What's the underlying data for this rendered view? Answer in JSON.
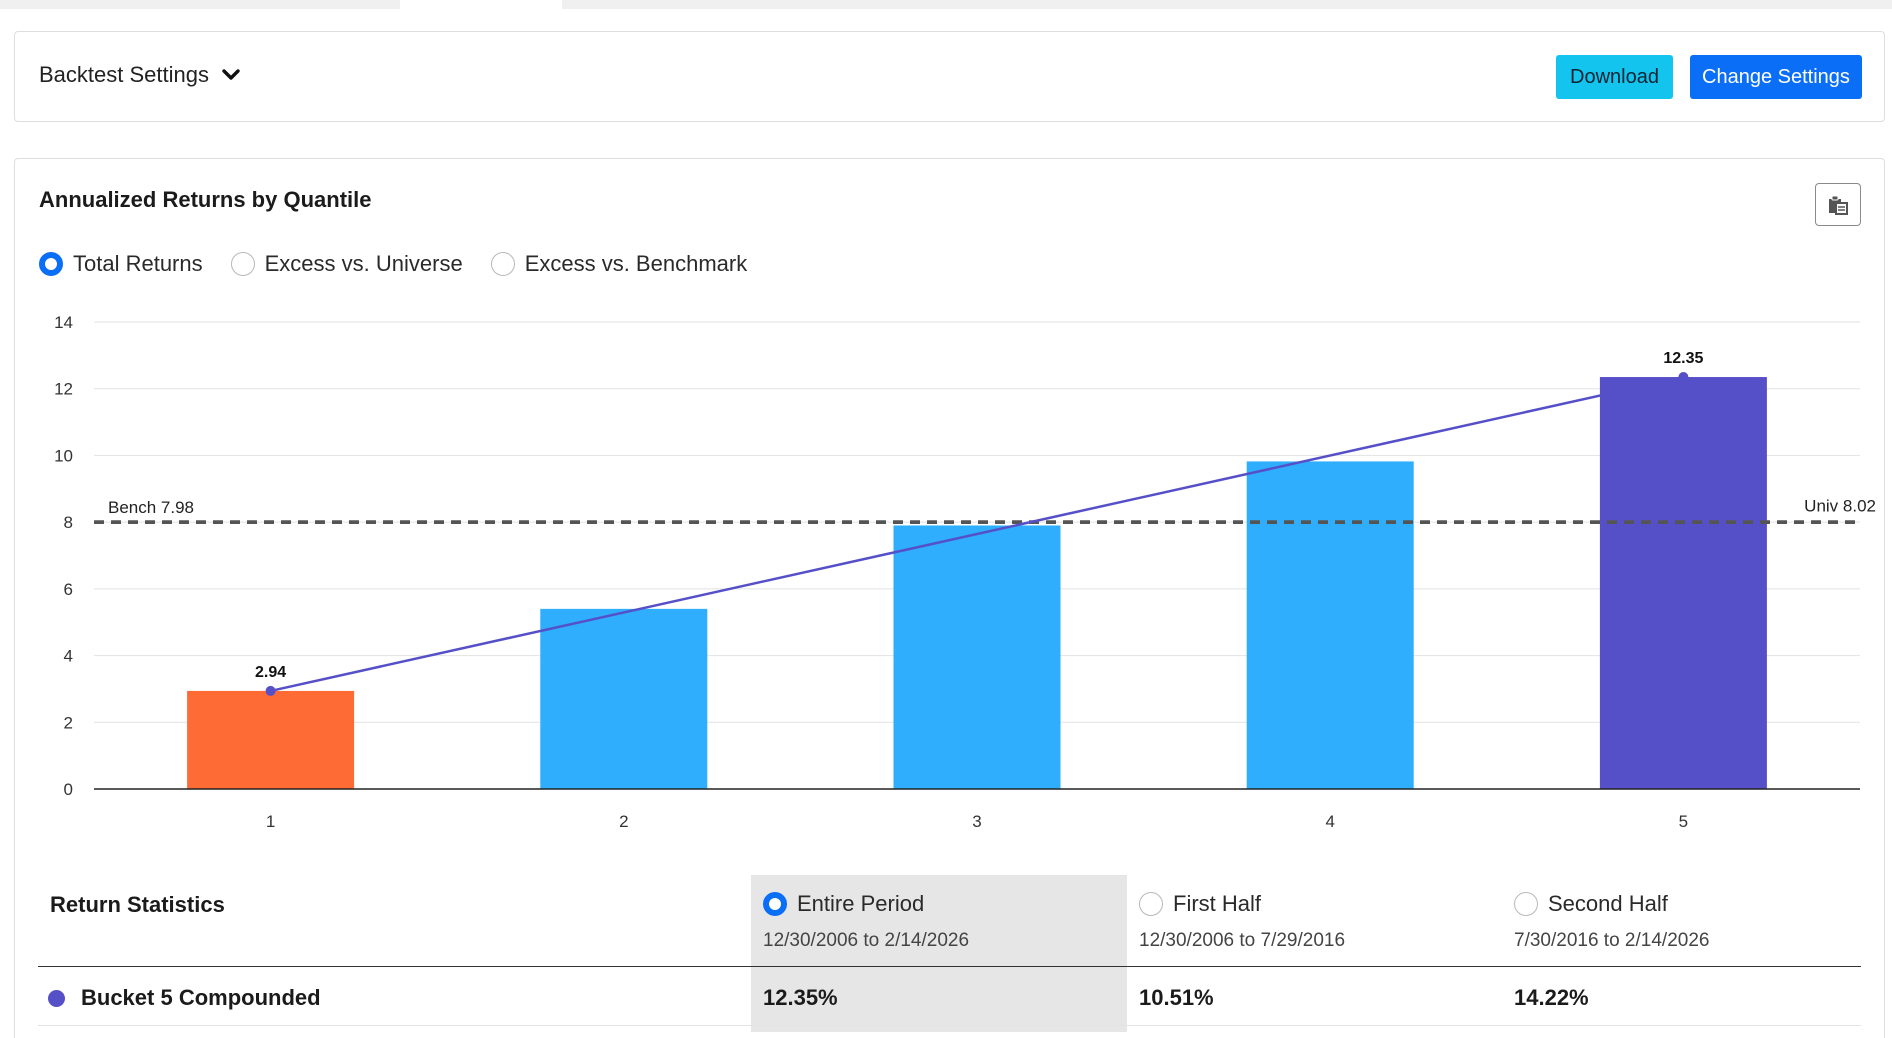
{
  "settings": {
    "title": "Backtest Settings",
    "download_label": "Download",
    "change_label": "Change Settings"
  },
  "chart_card": {
    "title": "Annualized Returns by Quantile",
    "modes": [
      {
        "label": "Total Returns",
        "selected": true
      },
      {
        "label": "Excess vs. Universe",
        "selected": false
      },
      {
        "label": "Excess vs. Benchmark",
        "selected": false
      }
    ],
    "copy_icon": "clipboard-icon"
  },
  "chart_data": {
    "type": "bar",
    "title": "",
    "xlabel": "",
    "ylabel": "",
    "categories": [
      "1",
      "2",
      "3",
      "4",
      "5"
    ],
    "values": [
      2.94,
      5.4,
      7.9,
      9.82,
      12.35
    ],
    "bar_colors": [
      "#ff6b35",
      "#2eaefc",
      "#2eaefc",
      "#2eaefc",
      "#5650c8"
    ],
    "data_labels": [
      {
        "category": "1",
        "text": "2.94"
      },
      {
        "category": "5",
        "text": "12.35"
      }
    ],
    "trend_line": {
      "from_category": "1",
      "from_value": 2.94,
      "to_category": "5",
      "to_value": 12.35,
      "color": "#5650c8"
    },
    "reference_lines": [
      {
        "label": "Bench 7.98",
        "value": 7.98,
        "side": "left"
      },
      {
        "label": "Univ 8.02",
        "value": 8.02,
        "side": "right"
      }
    ],
    "yticks": [
      0,
      2,
      4,
      6,
      8,
      10,
      12,
      14
    ],
    "ylim": [
      0,
      14
    ],
    "grid": true
  },
  "stats": {
    "heading": "Return Statistics",
    "periods": [
      {
        "label": "Entire Period",
        "range": "12/30/2006 to 2/14/2026",
        "selected": true
      },
      {
        "label": "First Half",
        "range": "12/30/2006 to 7/29/2016",
        "selected": false
      },
      {
        "label": "Second Half",
        "range": "7/30/2016 to 2/14/2026",
        "selected": false
      }
    ],
    "row": {
      "label": "Bucket 5 Compounded",
      "dot_color": "#5650c8",
      "values": [
        "12.35%",
        "10.51%",
        "14.22%"
      ]
    }
  }
}
